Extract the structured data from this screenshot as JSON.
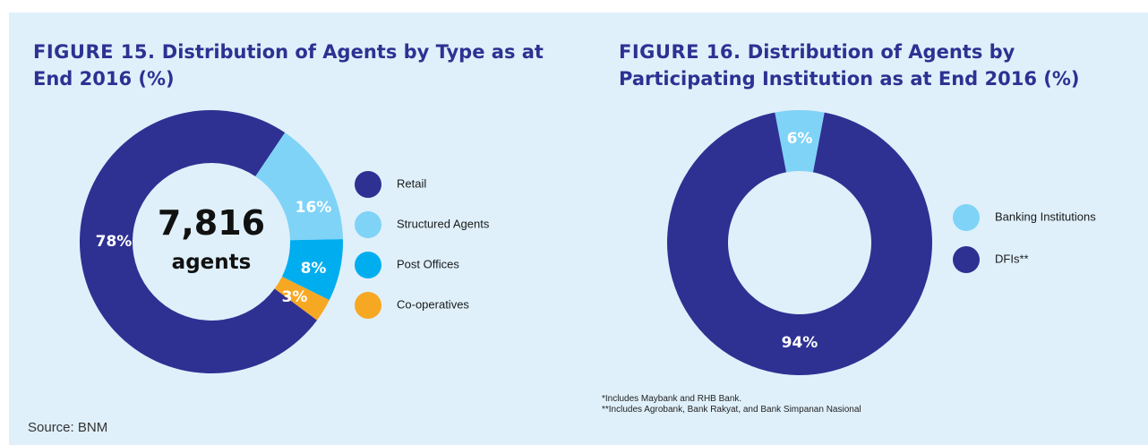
{
  "figure15": {
    "title_num": "FIGURE 15.",
    "title_rest": " Distribution of Agents by Type as at End 2016 (%)",
    "center_value": "7,816",
    "center_unit": "agents"
  },
  "figure16": {
    "title_num": "FIGURE 16.",
    "title_rest": " Distribution of Agents by Participating Institution as at End 2016 (%)",
    "note1": "*Includes Maybank and RHB Bank.",
    "note2": "**Includes Agrobank, Bank Rakyat, and Bank Simpanan Nasional"
  },
  "source": "Source: BNM",
  "chart_data": [
    {
      "type": "pie",
      "title": "FIGURE 15. Distribution of Agents by Type as at End 2016 (%)",
      "donut": true,
      "center_text": "7,816 agents",
      "legend_position": "right",
      "categories": [
        "Retail",
        "Structured Agents",
        "Post Offices",
        "Co-operatives"
      ],
      "values": [
        78,
        16,
        8,
        3
      ],
      "labels": [
        "78%",
        "16%",
        "8%",
        "3%"
      ],
      "colors": [
        "#2e3192",
        "#7fd3f7",
        "#00aeef",
        "#f7a823"
      ]
    },
    {
      "type": "pie",
      "title": "FIGURE 16. Distribution of Agents by Participating Institution as at End 2016 (%)",
      "donut": true,
      "legend_position": "right",
      "categories": [
        "Banking Institutions",
        "DFIs**"
      ],
      "values": [
        6,
        94
      ],
      "labels": [
        "6%",
        "94%"
      ],
      "colors": [
        "#7fd3f7",
        "#2e3192"
      ]
    }
  ]
}
